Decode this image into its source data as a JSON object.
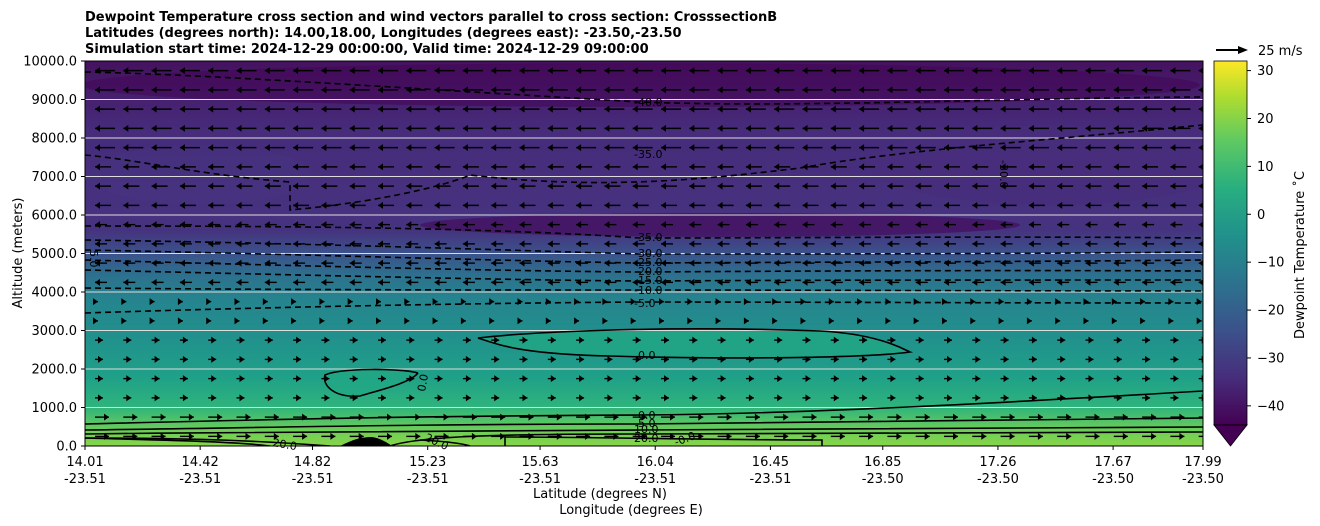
{
  "chart_data": {
    "type": "contour",
    "title_lines": [
      "Dewpoint Temperature cross section and wind vectors parallel to cross section: CrosssectionB",
      "Latitudes (degrees north): 14.00,18.00, Longitudes (degrees east): -23.50,-23.50",
      "Simulation start time: 2024-12-29 00:00:00, Valid time: 2024-12-29 09:00:00"
    ],
    "ylabel": "Altitude (meters)",
    "xlabel_lat": "Latitude (degrees N)",
    "xlabel_lon": "Longitude (degrees E)",
    "ylim": [
      0,
      10000
    ],
    "yticks": [
      "0.0",
      "1000.0",
      "2000.0",
      "3000.0",
      "4000.0",
      "5000.0",
      "6000.0",
      "7000.0",
      "8000.0",
      "9000.0",
      "10000.0"
    ],
    "xticks": [
      {
        "lat": "14.01",
        "lon": "-23.51"
      },
      {
        "lat": "14.42",
        "lon": "-23.51"
      },
      {
        "lat": "14.82",
        "lon": "-23.51"
      },
      {
        "lat": "15.23",
        "lon": "-23.51"
      },
      {
        "lat": "15.63",
        "lon": "-23.51"
      },
      {
        "lat": "16.04",
        "lon": "-23.51"
      },
      {
        "lat": "16.45",
        "lon": "-23.51"
      },
      {
        "lat": "16.85",
        "lon": "-23.50"
      },
      {
        "lat": "17.26",
        "lon": "-23.50"
      },
      {
        "lat": "17.67",
        "lon": "-23.50"
      },
      {
        "lat": "17.99",
        "lon": "-23.50"
      }
    ],
    "xlim": [
      14.01,
      17.99
    ],
    "colorbar": {
      "label": "Dewpoint Temperature ˚C",
      "ticks": [
        "30",
        "20",
        "10",
        "0",
        "−10",
        "−20",
        "−30",
        "−40"
      ],
      "range": [
        -44,
        32
      ],
      "extend": "min"
    },
    "quiver_key": "25 m/s",
    "contour_labels": [
      "-40.0",
      "-35.0",
      "-30.0",
      "-35.0",
      "-30.0",
      "-25.0",
      "-20.0",
      "-15.0",
      "-10.0",
      "-5.0",
      "0.0",
      "0.0",
      "0.0",
      "-5.0",
      "10.0",
      "20.0",
      "20.0",
      "20.0",
      "-0.0",
      "5.0"
    ],
    "dewpoint_levels": [
      {
        "name": "-40",
        "height_m": 9000
      },
      {
        "name": "-35",
        "height_m": 7400
      },
      {
        "name": "-35",
        "height_m": 5200
      },
      {
        "name": "-30",
        "height_m": 4900
      },
      {
        "name": "-25",
        "height_m": 4700
      },
      {
        "name": "-20",
        "height_m": 4450
      },
      {
        "name": "-15",
        "height_m": 4200
      },
      {
        "name": "-10",
        "height_m": 3950
      },
      {
        "name": "-5",
        "height_m": 3650
      },
      {
        "name": "0",
        "height_m": 2450
      },
      {
        "name": "0",
        "height_m": 800
      },
      {
        "name": "10",
        "height_m": 500
      },
      {
        "name": "20",
        "height_m": 250
      }
    ],
    "grid": true
  }
}
